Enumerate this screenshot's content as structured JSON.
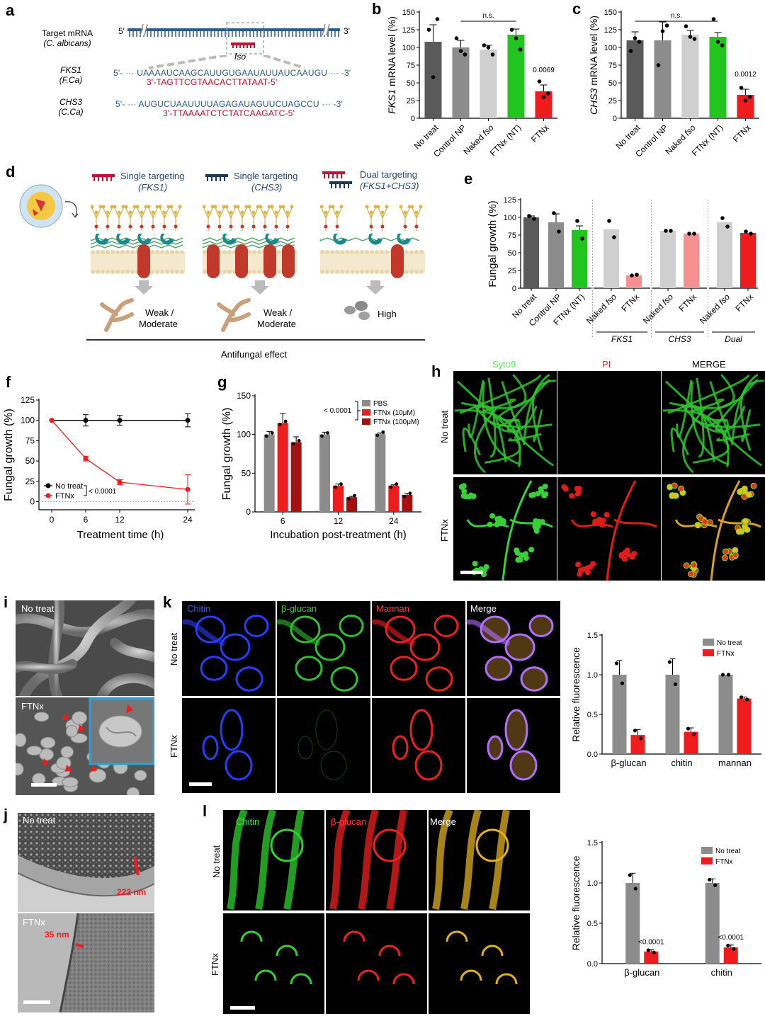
{
  "panels": {
    "a": "a",
    "b": "b",
    "c": "c",
    "d": "d",
    "e": "e",
    "f": "f",
    "g": "g",
    "h": "h",
    "i": "i",
    "j": "j",
    "k": "k",
    "l": "l"
  },
  "panel_a": {
    "target_line1": "Target mRNA",
    "target_line2": "(C. albicans)",
    "five_prime": "5'",
    "three_prime": "3'",
    "fso": "fso",
    "fks1_name": "FKS1",
    "fks1_org": "(F.Ca)",
    "fks1_mrna": "5'- ··· UAAAAUCAAGCAUUGUGAAUAUUAUCAAUGU ··· -3'",
    "fks1_fso": "3'-TAGTTCGTAACACTTATAAT-5'",
    "chs3_name": "CHS3",
    "chs3_org": "(C.Ca)",
    "chs3_mrna": "5'- ··· AUGUCUAAUUUUAGAGAUAGUUCUAGCCU ··· -3'",
    "chs3_fso": "3'-TTAAAATCTCTATCAAGATC-5'"
  },
  "panel_d": {
    "col1_title": "Single targeting",
    "col1_sub": "(FKS1)",
    "col2_title": "Single targeting",
    "col2_sub": "(CHS3)",
    "col3_title": "Dual targeting",
    "col3_sub": "(FKS1+CHS3)",
    "out1_a": "Weak /",
    "out1_b": "Moderate",
    "out2_a": "Weak /",
    "out2_b": "Moderate",
    "out3": "High",
    "axis": "Antifungal effect"
  },
  "panel_h": {
    "col1": "Syto9",
    "col2": "PI",
    "col3": "MERGE",
    "row1": "No treat",
    "row2": "FTNx"
  },
  "panel_i": {
    "top": "No treat",
    "bottom": "FTNx"
  },
  "panel_j": {
    "top": "No treat",
    "bottom": "FTNx",
    "thick": "222 nm",
    "thin": "35 nm"
  },
  "panel_k": {
    "col1": "Chitin",
    "col2": "β-glucan",
    "col3": "Mannan",
    "col4": "Merge",
    "row1": "No treat",
    "row2": "FTNx"
  },
  "panel_l": {
    "col1": "Chitin",
    "col2": "β-glucan",
    "col3": "Merge",
    "row1": "No treat",
    "row2": "FTNx"
  },
  "colors": {
    "dark_gray": "#5a5a5a",
    "mid_gray": "#8c8c8c",
    "light_gray": "#cfcfcf",
    "green": "#22c41e",
    "red": "#ee1c1c",
    "dark_red": "#a51010",
    "pink": "#f79090",
    "rna_blue": "#2a5c8c"
  },
  "chart_data": [
    {
      "id": "b",
      "type": "bar",
      "ylabel": "FKS1 mRNA level (%)",
      "ylim": [
        0,
        150
      ],
      "yticks": [
        0,
        25,
        50,
        75,
        100,
        125,
        150
      ],
      "categories": [
        "No treat",
        "Control NP",
        "Naked fso",
        "FTNx (NT)",
        "FTNx"
      ],
      "values": [
        108,
        100,
        97,
        118,
        38
      ],
      "errors": [
        24,
        10,
        6,
        8,
        9
      ],
      "colors": [
        "#5a5a5a",
        "#8c8c8c",
        "#cfcfcf",
        "#22c41e",
        "#ee1c1c"
      ],
      "points": [
        [
          125,
          58,
          140
        ],
        [
          113,
          95,
          90
        ],
        [
          103,
          100,
          90
        ],
        [
          125,
          113,
          97
        ],
        [
          52,
          30,
          35
        ]
      ],
      "annotations": [
        {
          "text": "n.s.",
          "from": 1,
          "to": 3
        },
        {
          "text": "0.0069",
          "at": 4
        }
      ]
    },
    {
      "id": "c",
      "type": "bar",
      "ylabel": "CHS3 mRNA level (%)",
      "ylim": [
        0,
        150
      ],
      "yticks": [
        0,
        25,
        50,
        75,
        100,
        125,
        150
      ],
      "categories": [
        "No treat",
        "Control NP",
        "Naked fso",
        "FTNx (NT)",
        "FTNx"
      ],
      "values": [
        110,
        110,
        118,
        115,
        33
      ],
      "errors": [
        12,
        26,
        6,
        6,
        8
      ],
      "colors": [
        "#5a5a5a",
        "#8c8c8c",
        "#cfcfcf",
        "#22c41e",
        "#ee1c1c"
      ],
      "points": [
        [
          95,
          113,
          108
        ],
        [
          75,
          123,
          131
        ],
        [
          130,
          115,
          112
        ],
        [
          140,
          108,
          103
        ],
        [
          43,
          25,
          30
        ]
      ],
      "annotations": [
        {
          "text": "n.s.",
          "from": 0,
          "to": 3
        },
        {
          "text": "0.0012",
          "at": 4
        }
      ]
    },
    {
      "id": "e",
      "type": "bar",
      "ylabel": "Fungal growth (%)",
      "ylim": [
        0,
        125
      ],
      "yticks": [
        0,
        25,
        50,
        75,
        100,
        125
      ],
      "categories": [
        "No treat",
        "Control NP",
        "FTNx (NT)",
        "Naked fso",
        "FTNx",
        "Naked fso",
        "FTNx",
        "Naked fso",
        "FTNx"
      ],
      "values": [
        100,
        93,
        82,
        83,
        18,
        81,
        77,
        93,
        78
      ],
      "errors": [
        2,
        12,
        6,
        0,
        0,
        0,
        0,
        0,
        0
      ],
      "colors": [
        "#5a5a5a",
        "#8c8c8c",
        "#22c41e",
        "#cfcfcf",
        "#f79090",
        "#cfcfcf",
        "#f79090",
        "#cfcfcf",
        "#ee1c1c"
      ],
      "points": [
        [
          102,
          98
        ],
        [
          106,
          80
        ],
        [
          95,
          70
        ],
        [
          95,
          72
        ],
        [
          18,
          19
        ],
        [
          81,
          81
        ],
        [
          77,
          77
        ],
        [
          99,
          87
        ],
        [
          80,
          77
        ]
      ],
      "groups": [
        "FKS1",
        "CHS3",
        "Dual"
      ],
      "italic_indices": [
        3,
        5,
        7
      ]
    },
    {
      "id": "f",
      "type": "line",
      "ylabel": "Fungal growth (%)",
      "xlabel": "Treatment time (h)",
      "x": [
        0,
        6,
        12,
        24
      ],
      "xticks": [
        0,
        6,
        12,
        24
      ],
      "ylim": [
        0,
        125
      ],
      "yticks": [
        0,
        25,
        50,
        75,
        100,
        125
      ],
      "series": [
        {
          "name": "No treat",
          "values": [
            100,
            100,
            100,
            100
          ],
          "errors": [
            0,
            7,
            6,
            8
          ],
          "color": "#000000"
        },
        {
          "name": "FTNx",
          "values": [
            100,
            53,
            24,
            15
          ],
          "errors": [
            0,
            3,
            3,
            18
          ],
          "color": "#ee1c1c"
        }
      ],
      "annotation": "< 0.0001"
    },
    {
      "id": "g",
      "type": "bar",
      "ylabel": "Fungal growth (%)",
      "xlabel": "Incubation post-treatment (h)",
      "categories": [
        "6",
        "12",
        "24"
      ],
      "ylim": [
        0,
        150
      ],
      "yticks": [
        0,
        50,
        100,
        150
      ],
      "series": [
        {
          "name": "PBS",
          "values": [
            100,
            100,
            101
          ],
          "errors": [
            4,
            3,
            1
          ],
          "color": "#8c8c8c"
        },
        {
          "name": "FTNx (10μM)",
          "values": [
            115,
            34,
            34
          ],
          "errors": [
            12,
            2,
            1
          ],
          "color": "#ee1c1c"
        },
        {
          "name": "FTNx (100μM)",
          "values": [
            90,
            19,
            22
          ],
          "errors": [
            7,
            1,
            2
          ],
          "color": "#a51010"
        }
      ],
      "annotation": "< 0.0001"
    },
    {
      "id": "k",
      "type": "bar",
      "ylabel": "Relative fluorescence",
      "categories": [
        "β-glucan",
        "chitin",
        "mannan"
      ],
      "ylim": [
        0,
        1.5
      ],
      "yticks": [
        0.0,
        0.5,
        1.0,
        1.5
      ],
      "series": [
        {
          "name": "No treat",
          "values": [
            1.0,
            1.0,
            1.0
          ],
          "errors": [
            0.18,
            0.2,
            0
          ],
          "color": "#8c8c8c"
        },
        {
          "name": "FTNx",
          "values": [
            0.24,
            0.28,
            0.7
          ],
          "errors": [
            0.07,
            0.05,
            0.02
          ],
          "color": "#ee1c1c"
        }
      ]
    },
    {
      "id": "l",
      "type": "bar",
      "ylabel": "Relative fluorescence",
      "categories": [
        "β-glucan",
        "chitin"
      ],
      "ylim": [
        0,
        1.5
      ],
      "yticks": [
        0.0,
        0.5,
        1.0,
        1.5
      ],
      "series": [
        {
          "name": "No treat",
          "values": [
            1.0,
            1.0
          ],
          "errors": [
            0.12,
            0.05
          ],
          "color": "#8c8c8c"
        },
        {
          "name": "FTNx",
          "values": [
            0.15,
            0.2
          ],
          "errors": [
            0.02,
            0.03
          ],
          "color": "#ee1c1c"
        }
      ],
      "annotations": [
        "<0.0001",
        "<0.0001"
      ]
    }
  ]
}
